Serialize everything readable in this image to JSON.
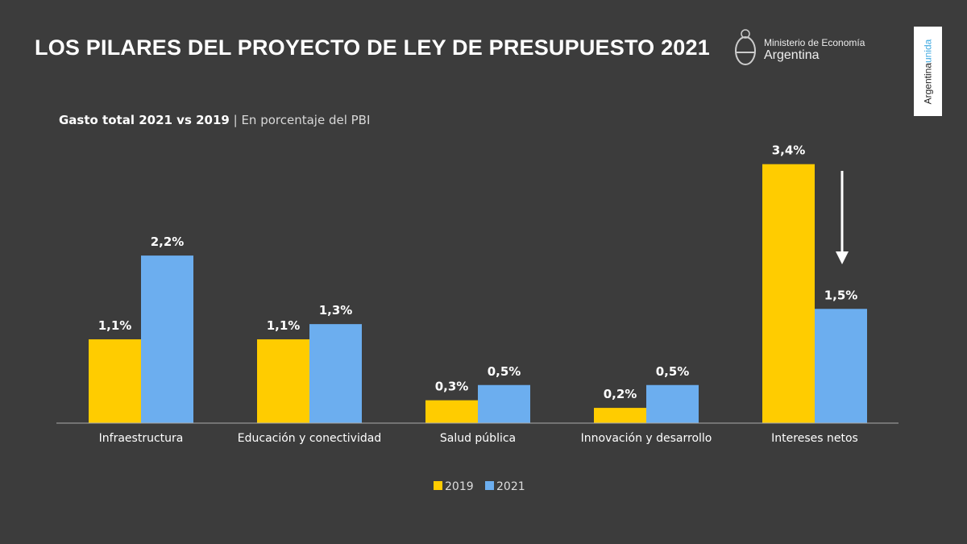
{
  "header": {
    "title": "LOS PILARES DEL PROYECTO DE LEY DE PRESUPUESTO 2021"
  },
  "logo": {
    "line1": "Ministerio de Economía",
    "line2": "Argentina"
  },
  "badge": {
    "part1": "Argentina",
    "part2": "unida"
  },
  "subtitle": {
    "bold": "Gasto total 2021 vs 2019",
    "sep": " | ",
    "light": "En porcentaje del PBI"
  },
  "colors": {
    "background": "#3c3c3c",
    "y2019": "#FFCC00",
    "y2021": "#6CAEEF"
  },
  "chart_data": {
    "type": "bar",
    "title": "Gasto total 2021 vs 2019 | En porcentaje del PBI",
    "categories": [
      "Infraestructura",
      "Educación y conectividad",
      "Salud pública",
      "Innovación y desarrollo",
      "Intereses netos"
    ],
    "series": [
      {
        "name": "2019",
        "values": [
          1.1,
          1.1,
          0.3,
          0.2,
          3.4
        ],
        "labels": [
          "1,1%",
          "1,1%",
          "0,3%",
          "0,2%",
          "3,4%"
        ]
      },
      {
        "name": "2021",
        "values": [
          2.2,
          1.3,
          0.5,
          0.5,
          1.5
        ],
        "labels": [
          "2,2%",
          "1,3%",
          "0,5%",
          "0,5%",
          "1,5%"
        ]
      }
    ],
    "ylim": [
      0,
      3.4
    ],
    "grid": false,
    "legend": "bottom-center",
    "annotation": "down-arrow over Intereses netos"
  }
}
